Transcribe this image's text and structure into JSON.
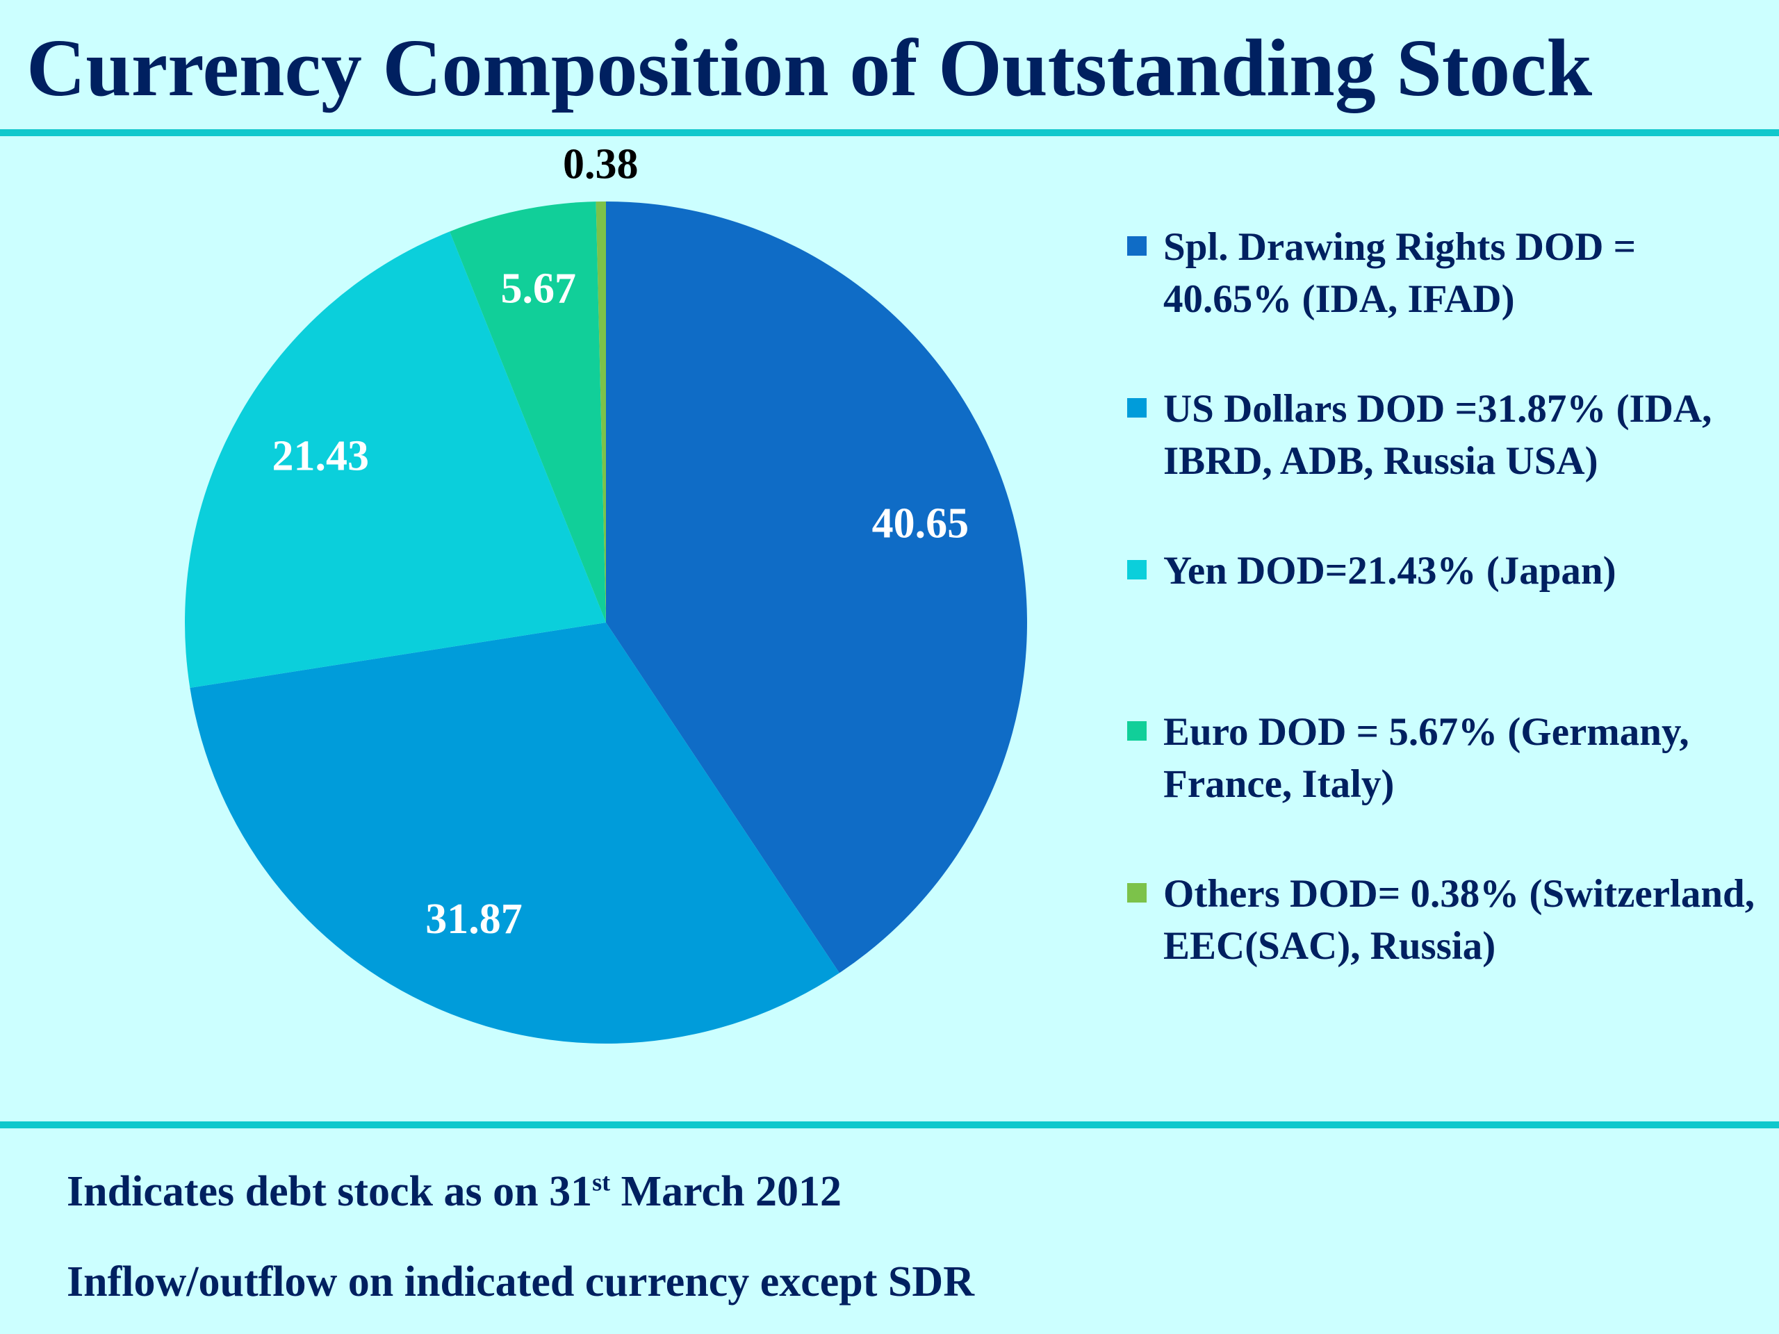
{
  "title": "Currency Composition of Outstanding Stock",
  "chart_data": {
    "type": "pie",
    "categories": [
      "Spl. Drawing Rights",
      "US Dollars",
      "Yen",
      "Euro",
      "Others"
    ],
    "values": [
      40.65,
      31.87,
      21.43,
      5.67,
      0.38
    ],
    "data_labels": [
      "40.65",
      "31.87",
      "21.43",
      "5.67",
      "0.38"
    ],
    "colors": [
      "#0f6cc6",
      "#009cda",
      "#0bcfdb",
      "#11cf99",
      "#7cc24a"
    ],
    "start_angle": "12 o'clock",
    "direction": "clockwise",
    "legend_position": "right",
    "legend": [
      "Spl. Drawing Rights DOD = 40.65% (IDA, IFAD)",
      "US Dollars DOD =31.87% (IDA, IBRD, ADB, Russia USA)",
      "Yen DOD=21.43% (Japan)",
      "Euro DOD = 5.67% (Germany, France, Italy)",
      "Others DOD= 0.38% (Switzerland, EEC(SAC), Russia)"
    ]
  },
  "notes": {
    "line1_prefix": "Indicates debt stock as on 31",
    "line1_sup": "st",
    "line1_suffix": " March 2012",
    "line2": "Inflow/outflow on indicated currency except SDR"
  }
}
